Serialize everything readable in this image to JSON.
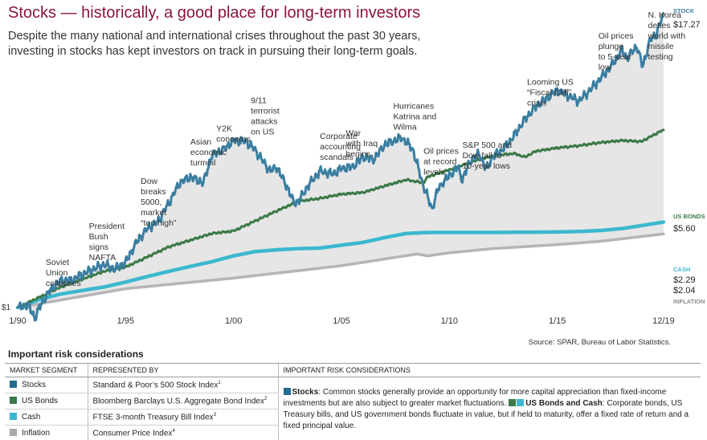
{
  "header": {
    "title": "Stocks — historically, a good place for long-term investors",
    "subtitle": "Despite the many national and international crises throughout the past 30 years, investing in stocks has kept investors on track in pursuing their long-term goals."
  },
  "chart_data": {
    "type": "line",
    "x_unit": "year",
    "x_range": [
      1990.0,
      2020.0
    ],
    "x_ticks": [
      {
        "label": "1/90",
        "x": 1990.0
      },
      {
        "label": "1/95",
        "x": 1995.0
      },
      {
        "label": "1/00",
        "x": 2000.0
      },
      {
        "label": "1/05",
        "x": 2005.0
      },
      {
        "label": "1/10",
        "x": 2010.0
      },
      {
        "label": "1/15",
        "x": 2015.0
      },
      {
        "label": "12/19",
        "x": 2019.92
      }
    ],
    "start_label": "$1",
    "y_scale": "log",
    "source": "Source: SPAR, Bureau of Labor Statistics.",
    "series": [
      {
        "name": "STOCK",
        "color": "#3a7ea1",
        "end_label": "$17.27",
        "points": [
          [
            1990.0,
            1.0
          ],
          [
            1990.5,
            1.02
          ],
          [
            1990.8,
            0.9
          ],
          [
            1991.0,
            1.0
          ],
          [
            1991.5,
            1.18
          ],
          [
            1992.0,
            1.3
          ],
          [
            1992.5,
            1.3
          ],
          [
            1993.0,
            1.38
          ],
          [
            1993.5,
            1.45
          ],
          [
            1994.0,
            1.52
          ],
          [
            1994.5,
            1.45
          ],
          [
            1995.0,
            1.55
          ],
          [
            1995.5,
            1.88
          ],
          [
            1996.0,
            2.15
          ],
          [
            1996.5,
            2.3
          ],
          [
            1997.0,
            2.75
          ],
          [
            1997.5,
            3.35
          ],
          [
            1998.0,
            3.55
          ],
          [
            1998.6,
            3.35
          ],
          [
            1999.0,
            4.4
          ],
          [
            1999.5,
            4.6
          ],
          [
            2000.0,
            5.05
          ],
          [
            2000.6,
            5.0
          ],
          [
            2001.0,
            4.6
          ],
          [
            2001.7,
            3.75
          ],
          [
            2002.0,
            3.9
          ],
          [
            2002.5,
            3.2
          ],
          [
            2002.8,
            2.75
          ],
          [
            2003.0,
            2.8
          ],
          [
            2003.5,
            3.3
          ],
          [
            2004.0,
            3.75
          ],
          [
            2004.6,
            3.65
          ],
          [
            2005.0,
            3.85
          ],
          [
            2005.5,
            3.9
          ],
          [
            2006.0,
            4.3
          ],
          [
            2006.5,
            4.2
          ],
          [
            2007.0,
            4.85
          ],
          [
            2007.8,
            5.2
          ],
          [
            2008.3,
            4.65
          ],
          [
            2008.8,
            3.25
          ],
          [
            2009.2,
            2.6
          ],
          [
            2009.5,
            3.2
          ],
          [
            2010.0,
            3.6
          ],
          [
            2010.4,
            3.9
          ],
          [
            2010.6,
            3.45
          ],
          [
            2011.0,
            4.2
          ],
          [
            2011.4,
            4.45
          ],
          [
            2011.7,
            3.8
          ],
          [
            2012.0,
            4.3
          ],
          [
            2012.5,
            4.65
          ],
          [
            2013.0,
            5.3
          ],
          [
            2013.5,
            6.2
          ],
          [
            2014.0,
            7.0
          ],
          [
            2014.5,
            7.6
          ],
          [
            2015.0,
            8.2
          ],
          [
            2015.6,
            7.7
          ],
          [
            2016.0,
            7.4
          ],
          [
            2016.5,
            8.2
          ],
          [
            2017.0,
            9.2
          ],
          [
            2017.5,
            10.4
          ],
          [
            2018.0,
            12.2
          ],
          [
            2018.2,
            11.2
          ],
          [
            2018.7,
            12.6
          ],
          [
            2018.95,
            10.3
          ],
          [
            2019.3,
            13.4
          ],
          [
            2019.6,
            14.2
          ],
          [
            2019.92,
            17.27
          ]
        ]
      },
      {
        "name": "US BONDS",
        "color": "#3c7a48",
        "end_label": "$5.60",
        "points": [
          [
            1990.0,
            1.0
          ],
          [
            1992.0,
            1.22
          ],
          [
            1994.0,
            1.42
          ],
          [
            1995.0,
            1.48
          ],
          [
            1997.0,
            1.8
          ],
          [
            1999.0,
            2.05
          ],
          [
            2000.0,
            2.1
          ],
          [
            2002.0,
            2.55
          ],
          [
            2003.0,
            2.8
          ],
          [
            2004.0,
            2.88
          ],
          [
            2005.0,
            3.0
          ],
          [
            2006.0,
            3.05
          ],
          [
            2007.0,
            3.25
          ],
          [
            2008.0,
            3.45
          ],
          [
            2008.8,
            3.35
          ],
          [
            2009.0,
            3.55
          ],
          [
            2010.0,
            3.8
          ],
          [
            2011.0,
            4.1
          ],
          [
            2012.0,
            4.35
          ],
          [
            2013.0,
            4.45
          ],
          [
            2013.5,
            4.3
          ],
          [
            2014.0,
            4.55
          ],
          [
            2015.0,
            4.7
          ],
          [
            2016.0,
            4.8
          ],
          [
            2017.0,
            4.95
          ],
          [
            2018.0,
            5.05
          ],
          [
            2018.9,
            5.0
          ],
          [
            2019.5,
            5.35
          ],
          [
            2019.92,
            5.6
          ]
        ]
      },
      {
        "name": "CASH",
        "color": "#3bb8cf",
        "end_label": "$2.29",
        "points": [
          [
            1990.0,
            1.0
          ],
          [
            1991.0,
            1.08
          ],
          [
            1992.0,
            1.14
          ],
          [
            1993.0,
            1.18
          ],
          [
            1994.0,
            1.22
          ],
          [
            1995.0,
            1.28
          ],
          [
            1996.0,
            1.35
          ],
          [
            1997.0,
            1.42
          ],
          [
            1998.0,
            1.49
          ],
          [
            1999.0,
            1.56
          ],
          [
            2000.0,
            1.65
          ],
          [
            2001.0,
            1.72
          ],
          [
            2002.0,
            1.75
          ],
          [
            2003.0,
            1.77
          ],
          [
            2004.0,
            1.78
          ],
          [
            2005.0,
            1.83
          ],
          [
            2006.0,
            1.88
          ],
          [
            2007.0,
            1.97
          ],
          [
            2008.0,
            2.05
          ],
          [
            2009.0,
            2.07
          ],
          [
            2012.0,
            2.07
          ],
          [
            2015.0,
            2.08
          ],
          [
            2016.0,
            2.09
          ],
          [
            2017.0,
            2.11
          ],
          [
            2018.0,
            2.15
          ],
          [
            2019.0,
            2.22
          ],
          [
            2019.92,
            2.29
          ]
        ]
      },
      {
        "name": "INFLATION",
        "color": "#b5b5b5",
        "end_label": "$2.04",
        "points": [
          [
            1990.0,
            1.0
          ],
          [
            1995.0,
            1.2
          ],
          [
            2000.0,
            1.33
          ],
          [
            2005.0,
            1.5
          ],
          [
            2008.5,
            1.68
          ],
          [
            2009.0,
            1.65
          ],
          [
            2010.0,
            1.7
          ],
          [
            2012.0,
            1.77
          ],
          [
            2015.0,
            1.84
          ],
          [
            2017.0,
            1.9
          ],
          [
            2019.92,
            2.04
          ]
        ]
      }
    ],
    "annotations": [
      {
        "x": 1991.3,
        "lines": [
          "Soviet",
          "Union",
          "collapses"
        ]
      },
      {
        "x": 1993.3,
        "lines": [
          "President",
          "Bush",
          "signs",
          "NAFTA"
        ]
      },
      {
        "x": 1995.7,
        "lines": [
          "Dow",
          "breaks",
          "5000,",
          "market",
          "“too high”"
        ]
      },
      {
        "x": 1998.0,
        "lines": [
          "Asian",
          "economic",
          "turmoil"
        ]
      },
      {
        "x": 1999.2,
        "lines": [
          "Y2K",
          "concerns"
        ]
      },
      {
        "x": 2000.8,
        "lines": [
          "9/11",
          "terrorist",
          "attacks",
          "on US"
        ]
      },
      {
        "x": 2004.0,
        "lines": [
          "Corporate",
          "accounting",
          "scandals"
        ]
      },
      {
        "x": 2005.2,
        "lines": [
          "War",
          "with Iraq",
          "begins"
        ]
      },
      {
        "x": 2007.4,
        "lines": [
          "Hurricanes",
          "Katrina and",
          "Wilma"
        ]
      },
      {
        "x": 2008.8,
        "lines": [
          "Oil prices",
          "at record",
          "levels"
        ]
      },
      {
        "x": 2010.6,
        "lines": [
          "S&P 500 and",
          "Dow fall to",
          "10-year lows"
        ]
      },
      {
        "x": 2013.6,
        "lines": [
          "Looming US",
          "“Fiscal Cliff”",
          "crisis"
        ]
      },
      {
        "x": 2016.9,
        "lines": [
          "Oil prices",
          "plunge",
          "to 5-year",
          "low"
        ]
      },
      {
        "x": 2019.2,
        "lines": [
          "N. Korea",
          "defies",
          "world with",
          "missile",
          "testing"
        ]
      }
    ]
  },
  "risk": {
    "title": "Important risk considerations",
    "headers": [
      "MARKET SEGMENT",
      "REPRESENTED BY",
      "IMPORTANT RISK CONSIDERATIONS"
    ],
    "rows": [
      {
        "segment": "Stocks",
        "color": "#246c8e",
        "index": "Standard & Poor’s 500 Stock Index",
        "sup": "1"
      },
      {
        "segment": "US Bonds",
        "color": "#3c7a48",
        "index": "Bloomberg Barclays U.S. Aggregate Bond Index",
        "sup": "2"
      },
      {
        "segment": "Cash",
        "color": "#3bb8cf",
        "index": "FTSE 3-month Treasury Bill Index",
        "sup": "3"
      },
      {
        "segment": "Inflation",
        "color": "#a9a9a9",
        "index": "Consumer Price Index",
        "sup": "4"
      }
    ],
    "stocks_label": "Stocks",
    "stocks_text": ": Common stocks generally provide an opportunity for more capital appreciation than fixed-income investments but are also subject to greater market fluctuations.",
    "bonds_label": "US Bonds and Cash",
    "bonds_text": ": Corporate bonds, US Treasury bills, and US government bonds fluctuate in value, but if held to maturity, offer a fixed rate of return and a fixed principal value."
  }
}
